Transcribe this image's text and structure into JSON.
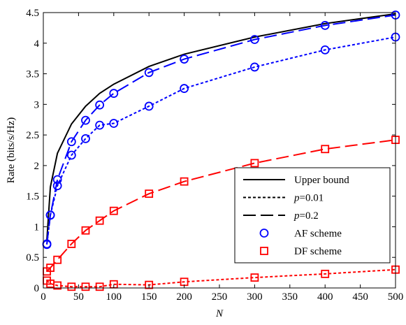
{
  "chart_data": {
    "type": "line",
    "title": "",
    "xlabel": "N",
    "ylabel": "Rate (bits/s/Hz)",
    "xlim": [
      0,
      500
    ],
    "ylim": [
      0,
      4.5
    ],
    "x_ticks": [
      0,
      50,
      100,
      150,
      200,
      250,
      300,
      350,
      400,
      450,
      500
    ],
    "y_ticks": [
      0,
      0.5,
      1,
      1.5,
      2,
      2.5,
      3,
      3.5,
      4,
      4.5
    ],
    "x_tick_labels": [
      "0",
      "50",
      "100",
      "150",
      "200",
      "250",
      "300",
      "350",
      "400",
      "450",
      "500"
    ],
    "y_tick_labels": [
      "0",
      "0.5",
      "1",
      "1.5",
      "2",
      "2.5",
      "3",
      "3.5",
      "4",
      "4.5"
    ],
    "grid": false,
    "legend_position": "lower-right",
    "legend": [
      {
        "label": "Upper bound",
        "style": "solid",
        "color": "#000000"
      },
      {
        "label_prefix": "p",
        "label_suffix": "=0.01",
        "style": "dotted",
        "color": "#000000"
      },
      {
        "label_prefix": "p",
        "label_suffix": "=0.2",
        "style": "dashed",
        "color": "#000000"
      },
      {
        "label": "AF scheme",
        "marker": "circle",
        "color": "#0000ff"
      },
      {
        "label": "DF scheme",
        "marker": "square",
        "color": "#ff0000"
      }
    ],
    "series": [
      {
        "scheme": "upper",
        "style": "solid",
        "color": "#000000",
        "marker": "none",
        "x": [
          5,
          10,
          20,
          40,
          60,
          80,
          100,
          150,
          200,
          300,
          400,
          500
        ],
        "y": [
          0.78,
          1.65,
          2.2,
          2.68,
          2.97,
          3.18,
          3.33,
          3.62,
          3.82,
          4.1,
          4.32,
          4.48
        ]
      },
      {
        "scheme": "AF",
        "style": "dashed",
        "color": "#0000ff",
        "marker": "circle",
        "x": [
          5,
          10,
          20,
          40,
          60,
          80,
          100,
          150,
          200,
          300,
          400,
          500
        ],
        "y": [
          0.72,
          1.19,
          1.77,
          2.39,
          2.74,
          2.99,
          3.18,
          3.52,
          3.74,
          4.06,
          4.29,
          4.46
        ]
      },
      {
        "scheme": "AF",
        "style": "dotted",
        "color": "#0000ff",
        "marker": "circle",
        "x": [
          5,
          10,
          20,
          40,
          60,
          80,
          100,
          150,
          200,
          300,
          400,
          500
        ],
        "y": [
          0.71,
          1.19,
          1.67,
          2.17,
          2.44,
          2.66,
          2.69,
          2.97,
          3.26,
          3.61,
          3.89,
          4.1
        ]
      },
      {
        "scheme": "DF",
        "style": "dashed",
        "color": "#ff0000",
        "marker": "square",
        "x": [
          5,
          10,
          20,
          40,
          60,
          80,
          100,
          150,
          200,
          300,
          400,
          500
        ],
        "y": [
          0.27,
          0.33,
          0.46,
          0.72,
          0.94,
          1.1,
          1.26,
          1.54,
          1.74,
          2.04,
          2.27,
          2.42
        ]
      },
      {
        "scheme": "DF",
        "style": "dotted",
        "color": "#ff0000",
        "marker": "square",
        "x": [
          5,
          10,
          20,
          40,
          60,
          80,
          100,
          150,
          200,
          300,
          400,
          500
        ],
        "y": [
          0.12,
          0.07,
          0.04,
          0.02,
          0.02,
          0.02,
          0.06,
          0.05,
          0.1,
          0.17,
          0.23,
          0.3
        ]
      }
    ]
  }
}
